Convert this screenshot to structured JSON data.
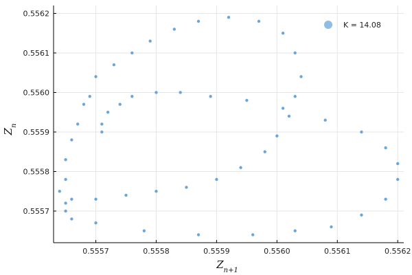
{
  "chart_data": {
    "type": "scatter",
    "xlabel": "Z",
    "xlabel_sub": "n+1",
    "ylabel": "Z",
    "ylabel_sub": "n",
    "xlim": [
      0.55563,
      0.55621
    ],
    "ylim": [
      0.55562,
      0.55622
    ],
    "x_ticks": [
      0.5557,
      0.5558,
      0.5559,
      0.556,
      0.5561,
      0.5562
    ],
    "x_tick_labels": [
      "0.5557",
      "0.5558",
      "0.5559",
      "0.5560",
      "0.5561",
      "0.5562"
    ],
    "y_ticks": [
      0.5557,
      0.5558,
      0.5559,
      0.556,
      0.5561,
      0.5562
    ],
    "y_tick_labels": [
      "0.5557",
      "0.5558",
      "0.5559",
      "0.5560",
      "0.5561",
      "0.5562"
    ],
    "grid": true,
    "legend_position": "top-right",
    "series": [
      {
        "name": "K = 14.08",
        "color": "#5b9bd5",
        "legend_color": "#8fbde8",
        "points": [
          [
            0.55564,
            0.55575
          ],
          [
            0.55565,
            0.55578
          ],
          [
            0.55565,
            0.55583
          ],
          [
            0.55566,
            0.55588
          ],
          [
            0.55567,
            0.55592
          ],
          [
            0.55568,
            0.55597
          ],
          [
            0.55569,
            0.55599
          ],
          [
            0.5557,
            0.55604
          ],
          [
            0.55573,
            0.55607
          ],
          [
            0.55576,
            0.5561
          ],
          [
            0.55579,
            0.55613
          ],
          [
            0.55583,
            0.55616
          ],
          [
            0.55587,
            0.55618
          ],
          [
            0.55592,
            0.55619
          ],
          [
            0.55597,
            0.55618
          ],
          [
            0.55601,
            0.55615
          ],
          [
            0.55603,
            0.5561
          ],
          [
            0.55604,
            0.55604
          ],
          [
            0.55603,
            0.55599
          ],
          [
            0.55602,
            0.55594
          ],
          [
            0.556,
            0.55589
          ],
          [
            0.55598,
            0.55585
          ],
          [
            0.55594,
            0.55581
          ],
          [
            0.5559,
            0.55578
          ],
          [
            0.55585,
            0.55576
          ],
          [
            0.5558,
            0.55575
          ],
          [
            0.55575,
            0.55574
          ],
          [
            0.5557,
            0.55573
          ],
          [
            0.55566,
            0.55573
          ],
          [
            0.55565,
            0.55572
          ],
          [
            0.55565,
            0.5557
          ],
          [
            0.55566,
            0.55568
          ],
          [
            0.5557,
            0.55567
          ],
          [
            0.55578,
            0.55565
          ],
          [
            0.55587,
            0.55564
          ],
          [
            0.55596,
            0.55564
          ],
          [
            0.55603,
            0.55565
          ],
          [
            0.55609,
            0.55566
          ],
          [
            0.55614,
            0.55569
          ],
          [
            0.55618,
            0.55573
          ],
          [
            0.5562,
            0.55578
          ],
          [
            0.5562,
            0.55582
          ],
          [
            0.55618,
            0.55586
          ],
          [
            0.55614,
            0.5559
          ],
          [
            0.55608,
            0.55593
          ],
          [
            0.55601,
            0.55596
          ],
          [
            0.55595,
            0.55598
          ],
          [
            0.55589,
            0.55599
          ],
          [
            0.55584,
            0.556
          ],
          [
            0.5558,
            0.556
          ],
          [
            0.55576,
            0.55599
          ],
          [
            0.55574,
            0.55597
          ],
          [
            0.55572,
            0.55595
          ],
          [
            0.55571,
            0.55592
          ],
          [
            0.55571,
            0.5559
          ]
        ]
      }
    ]
  }
}
